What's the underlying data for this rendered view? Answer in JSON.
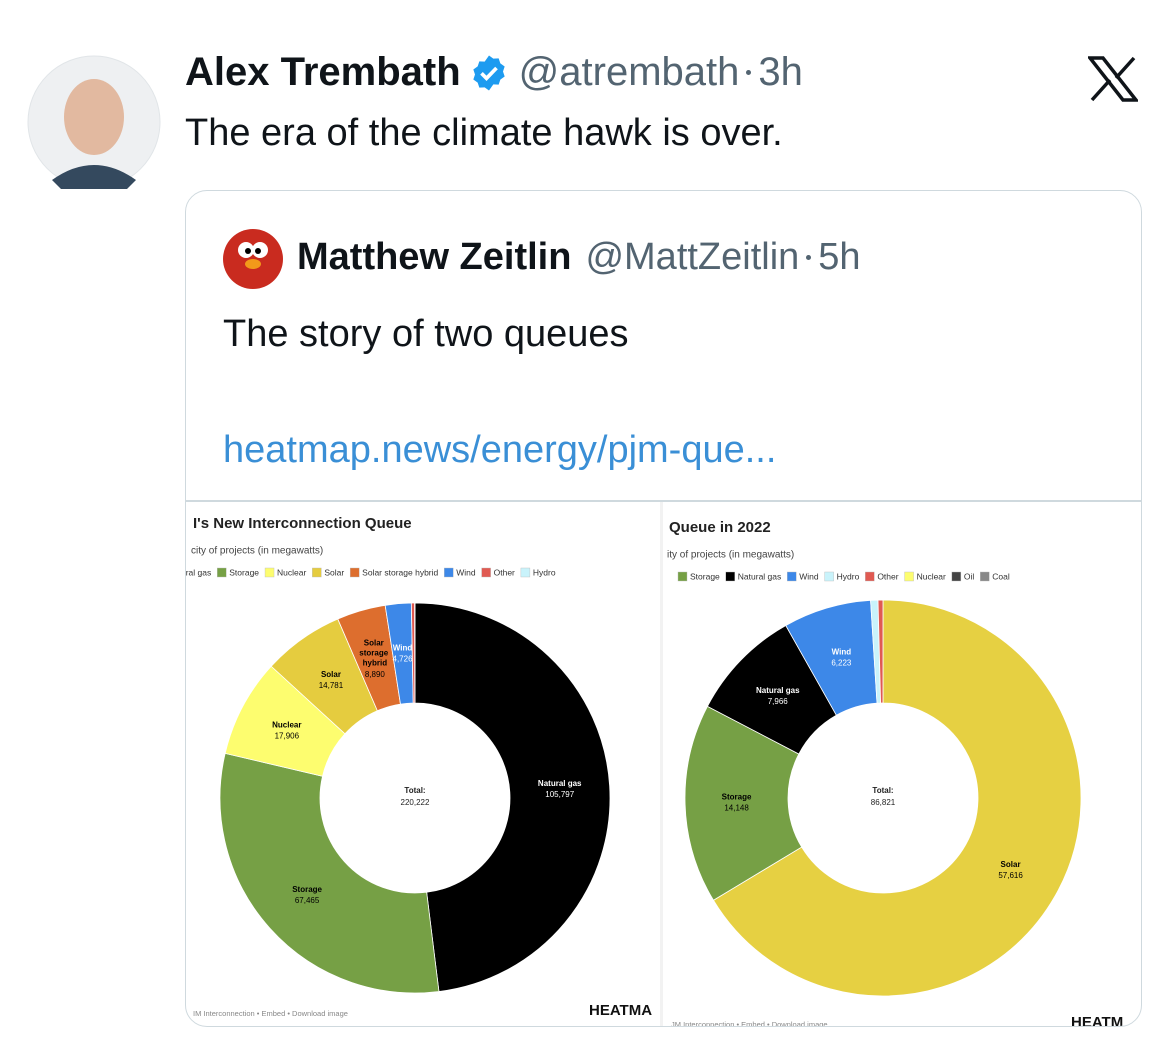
{
  "tweet": {
    "author": "Alex Trembath",
    "handle": "@atrembath",
    "time": "3h",
    "text": "The era of the climate hawk is over."
  },
  "quote": {
    "author": "Matthew Zeitlin",
    "handle": "@MattZeitlin",
    "time": "5h",
    "text": "The story of two queues",
    "link": "heatmap.news/energy/pjm-que..."
  },
  "charts": [
    {
      "type": "donut",
      "title": "I's New Interconnection Queue",
      "subtitle": "city of projects (in megawatts)",
      "categories": [
        "Natural gas",
        "Storage",
        "Nuclear",
        "Solar",
        "Solar storage hybrid",
        "Wind",
        null,
        null
      ],
      "values": [
        105797,
        67465,
        17906,
        14781,
        8890,
        4726,
        600,
        57
      ],
      "value_labels": [
        "105,797",
        "67,465",
        "17,906",
        "14,781",
        "8,890",
        "4,726",
        null,
        null
      ],
      "colors": [
        "#000000",
        "#76a045",
        "#fdfd6f",
        "#e5cc3f",
        "#dd6e2e",
        "#3d88e8",
        "#e05a52",
        "#c9f3fb"
      ],
      "legend": [
        {
          "label": "ural gas",
          "color": "#000000"
        },
        {
          "label": "Storage",
          "color": "#76a045"
        },
        {
          "label": "Nuclear",
          "color": "#fdfd6f"
        },
        {
          "label": "Solar",
          "color": "#e5cc3f"
        },
        {
          "label": "Solar storage hybrid",
          "color": "#dd6e2e"
        },
        {
          "label": "Wind",
          "color": "#3d88e8"
        },
        {
          "label": "Other",
          "color": "#e05a52"
        },
        {
          "label": "Hydro",
          "color": "#c9f3fb"
        }
      ],
      "total_label": "Total:",
      "total": "220,222",
      "footer": "IM Interconnection • Embed • Download image",
      "logo": "HEATMA"
    },
    {
      "type": "donut",
      "title": "Queue in 2022",
      "subtitle": "ity of projects (in megawatts)",
      "categories": [
        "Solar",
        "Storage",
        "Natural gas",
        "Wind",
        null,
        null
      ],
      "values": [
        57616,
        14148,
        7966,
        6223,
        520,
        348
      ],
      "value_labels": [
        "57,616",
        "14,148",
        "7,966",
        "6,223",
        null,
        null
      ],
      "colors": [
        "#e6d042",
        "#76a045",
        "#000000",
        "#3d88e8",
        "#c9f3fb",
        "#e05a52"
      ],
      "legend": [
        {
          "label": "Storage",
          "color": "#76a045"
        },
        {
          "label": "Natural gas",
          "color": "#000000"
        },
        {
          "label": "Wind",
          "color": "#3d88e8"
        },
        {
          "label": "Hydro",
          "color": "#c9f3fb"
        },
        {
          "label": "Other",
          "color": "#e05a52"
        },
        {
          "label": "Nuclear",
          "color": "#fdfd6f"
        },
        {
          "label": "Oil",
          "color": "#444444"
        },
        {
          "label": "Coal",
          "color": "#888888"
        }
      ],
      "total_label": "Total:",
      "total": "86,821",
      "footer": "JM Interconnection • Embed • Download image",
      "logo": "HEATM"
    }
  ]
}
